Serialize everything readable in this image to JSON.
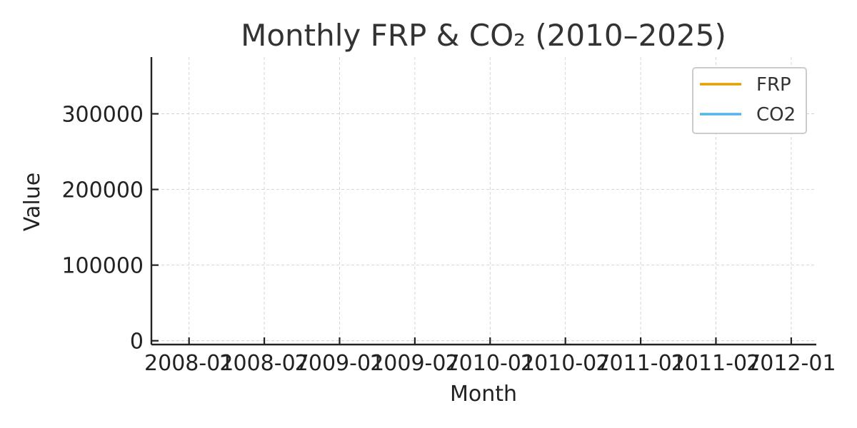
{
  "chart_data": {
    "type": "line",
    "title": "Monthly FRP & CO₂ (2010–2025)",
    "xlabel": "Month",
    "ylabel": "Value",
    "x_ticks": [
      "2008-01",
      "2008-07",
      "2009-01",
      "2009-07",
      "2010-01",
      "2010-07",
      "2011-01",
      "2011-07",
      "2012-01"
    ],
    "y_ticks": [
      0,
      100000,
      200000,
      300000
    ],
    "xlim": [
      "2007-10",
      "2012-03"
    ],
    "ylim": [
      -5000,
      375000
    ],
    "grid": true,
    "legend_position": "top-right",
    "series": [
      {
        "name": "FRP",
        "color": "#E69F00",
        "x": [],
        "values": []
      },
      {
        "name": "CO2",
        "color": "#56B4E9",
        "x": [],
        "values": []
      }
    ]
  }
}
